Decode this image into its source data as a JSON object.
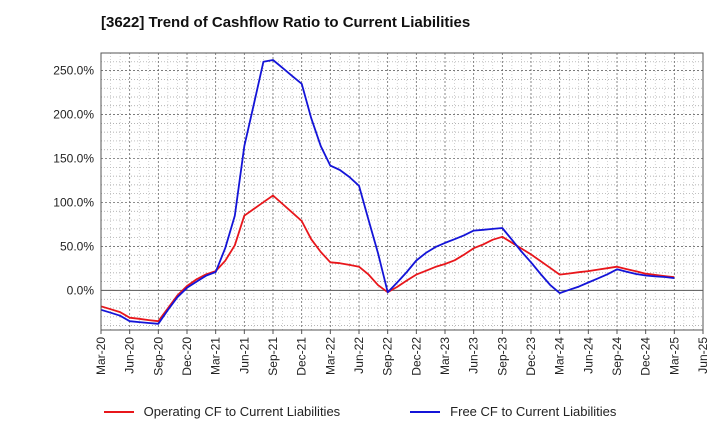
{
  "chart_data": {
    "type": "line",
    "title": "[3622]  Trend of Cashflow Ratio to Current Liabilities",
    "xlabel": "",
    "ylabel": "",
    "x_tick_labels": [
      "Mar-20",
      "Jun-20",
      "Sep-20",
      "Dec-20",
      "Mar-21",
      "Jun-21",
      "Sep-21",
      "Dec-21",
      "Mar-22",
      "Jun-22",
      "Sep-22",
      "Dec-22",
      "Mar-23",
      "Jun-23",
      "Sep-23",
      "Dec-23",
      "Mar-24",
      "Jun-24",
      "Sep-24",
      "Dec-24",
      "Mar-25",
      "Jun-25"
    ],
    "y_tick_labels": [
      "0.0%",
      "50.0%",
      "100.0%",
      "150.0%",
      "200.0%",
      "250.0%"
    ],
    "y_ticks": [
      0,
      50,
      100,
      150,
      200,
      250
    ],
    "ylim": [
      -45,
      270
    ],
    "grid": true,
    "legend_position": "bottom",
    "series": [
      {
        "name": "Operating CF to Current Liabilities",
        "color": "#e8161b",
        "x": [
          "Mar-20",
          "Apr-20",
          "May-20",
          "Jun-20",
          "Jul-20",
          "Aug-20",
          "Sep-20",
          "Oct-20",
          "Nov-20",
          "Dec-20",
          "Jan-21",
          "Feb-21",
          "Mar-21",
          "Apr-21",
          "May-21",
          "Jun-21",
          "Jul-21",
          "Aug-21",
          "Sep-21",
          "Oct-21",
          "Nov-21",
          "Dec-21",
          "Jan-22",
          "Feb-22",
          "Mar-22",
          "Apr-22",
          "May-22",
          "Jun-22",
          "Jul-22",
          "Aug-22",
          "Sep-22",
          "Oct-22",
          "Nov-22",
          "Dec-22",
          "Jan-23",
          "Feb-23",
          "Mar-23",
          "Apr-23",
          "May-23",
          "Jun-23",
          "Jul-23",
          "Aug-23",
          "Sep-23",
          "Oct-23",
          "Nov-23",
          "Dec-23",
          "Jan-24",
          "Feb-24",
          "Mar-24",
          "Apr-24",
          "May-24",
          "Jun-24",
          "Jul-24",
          "Aug-24",
          "Sep-24",
          "Oct-24",
          "Nov-24",
          "Dec-24",
          "Jan-25",
          "Feb-25",
          "Mar-25"
        ],
        "values": [
          -18,
          -21.3,
          -24.7,
          -31,
          -32.3,
          -33.7,
          -35,
          -20.3,
          -5.7,
          5,
          12.7,
          18.3,
          22,
          33.7,
          51.3,
          85,
          92.7,
          100.3,
          108,
          98.3,
          88.7,
          79,
          58.3,
          43.7,
          32,
          31,
          29,
          27,
          18,
          6,
          -2,
          4,
          11.3,
          18,
          22.3,
          26.7,
          30,
          34.3,
          40.7,
          48,
          52.3,
          57.7,
          61,
          54.3,
          47.7,
          41,
          33.3,
          25.7,
          18,
          19.3,
          20.7,
          22,
          23.7,
          25.3,
          27,
          24.3,
          21.7,
          19,
          17.7,
          16.3,
          15
        ]
      },
      {
        "name": "Free CF to Current Liabilities",
        "color": "#1414d8",
        "x": [
          "Mar-20",
          "Apr-20",
          "May-20",
          "Jun-20",
          "Jul-20",
          "Aug-20",
          "Sep-20",
          "Oct-20",
          "Nov-20",
          "Dec-20",
          "Jan-21",
          "Feb-21",
          "Mar-21",
          "Apr-21",
          "May-21",
          "Jun-21",
          "Jul-21",
          "Aug-21",
          "Sep-21",
          "Oct-21",
          "Nov-21",
          "Dec-21",
          "Jan-22",
          "Feb-22",
          "Mar-22",
          "Apr-22",
          "May-22",
          "Jun-22",
          "Jul-22",
          "Aug-22",
          "Sep-22",
          "Oct-22",
          "Nov-22",
          "Dec-22",
          "Jan-23",
          "Feb-23",
          "Mar-23",
          "Apr-23",
          "May-23",
          "Jun-23",
          "Jul-23",
          "Aug-23",
          "Sep-23",
          "Oct-23",
          "Nov-23",
          "Dec-23",
          "Jan-24",
          "Feb-24",
          "Mar-24",
          "Apr-24",
          "May-24",
          "Jun-24",
          "Jul-24",
          "Aug-24",
          "Sep-24",
          "Oct-24",
          "Nov-24",
          "Dec-24",
          "Jan-25",
          "Feb-25",
          "Mar-25"
        ],
        "values": [
          -22,
          -25.3,
          -28.7,
          -35,
          -36,
          -37,
          -38,
          -22.3,
          -7.7,
          3,
          10,
          16.7,
          21,
          48,
          85,
          164,
          212,
          260,
          262,
          253,
          244,
          235,
          196,
          164,
          142,
          137,
          129,
          119,
          80,
          42,
          -2,
          9,
          21,
          34,
          42.7,
          49.3,
          54,
          58.3,
          62.7,
          68,
          69,
          70,
          71,
          57.7,
          44.3,
          32,
          18.7,
          6.3,
          -3,
          0.7,
          4.3,
          9,
          13.7,
          18.3,
          24,
          21.3,
          18.7,
          17,
          16,
          15.3,
          14
        ]
      }
    ]
  }
}
